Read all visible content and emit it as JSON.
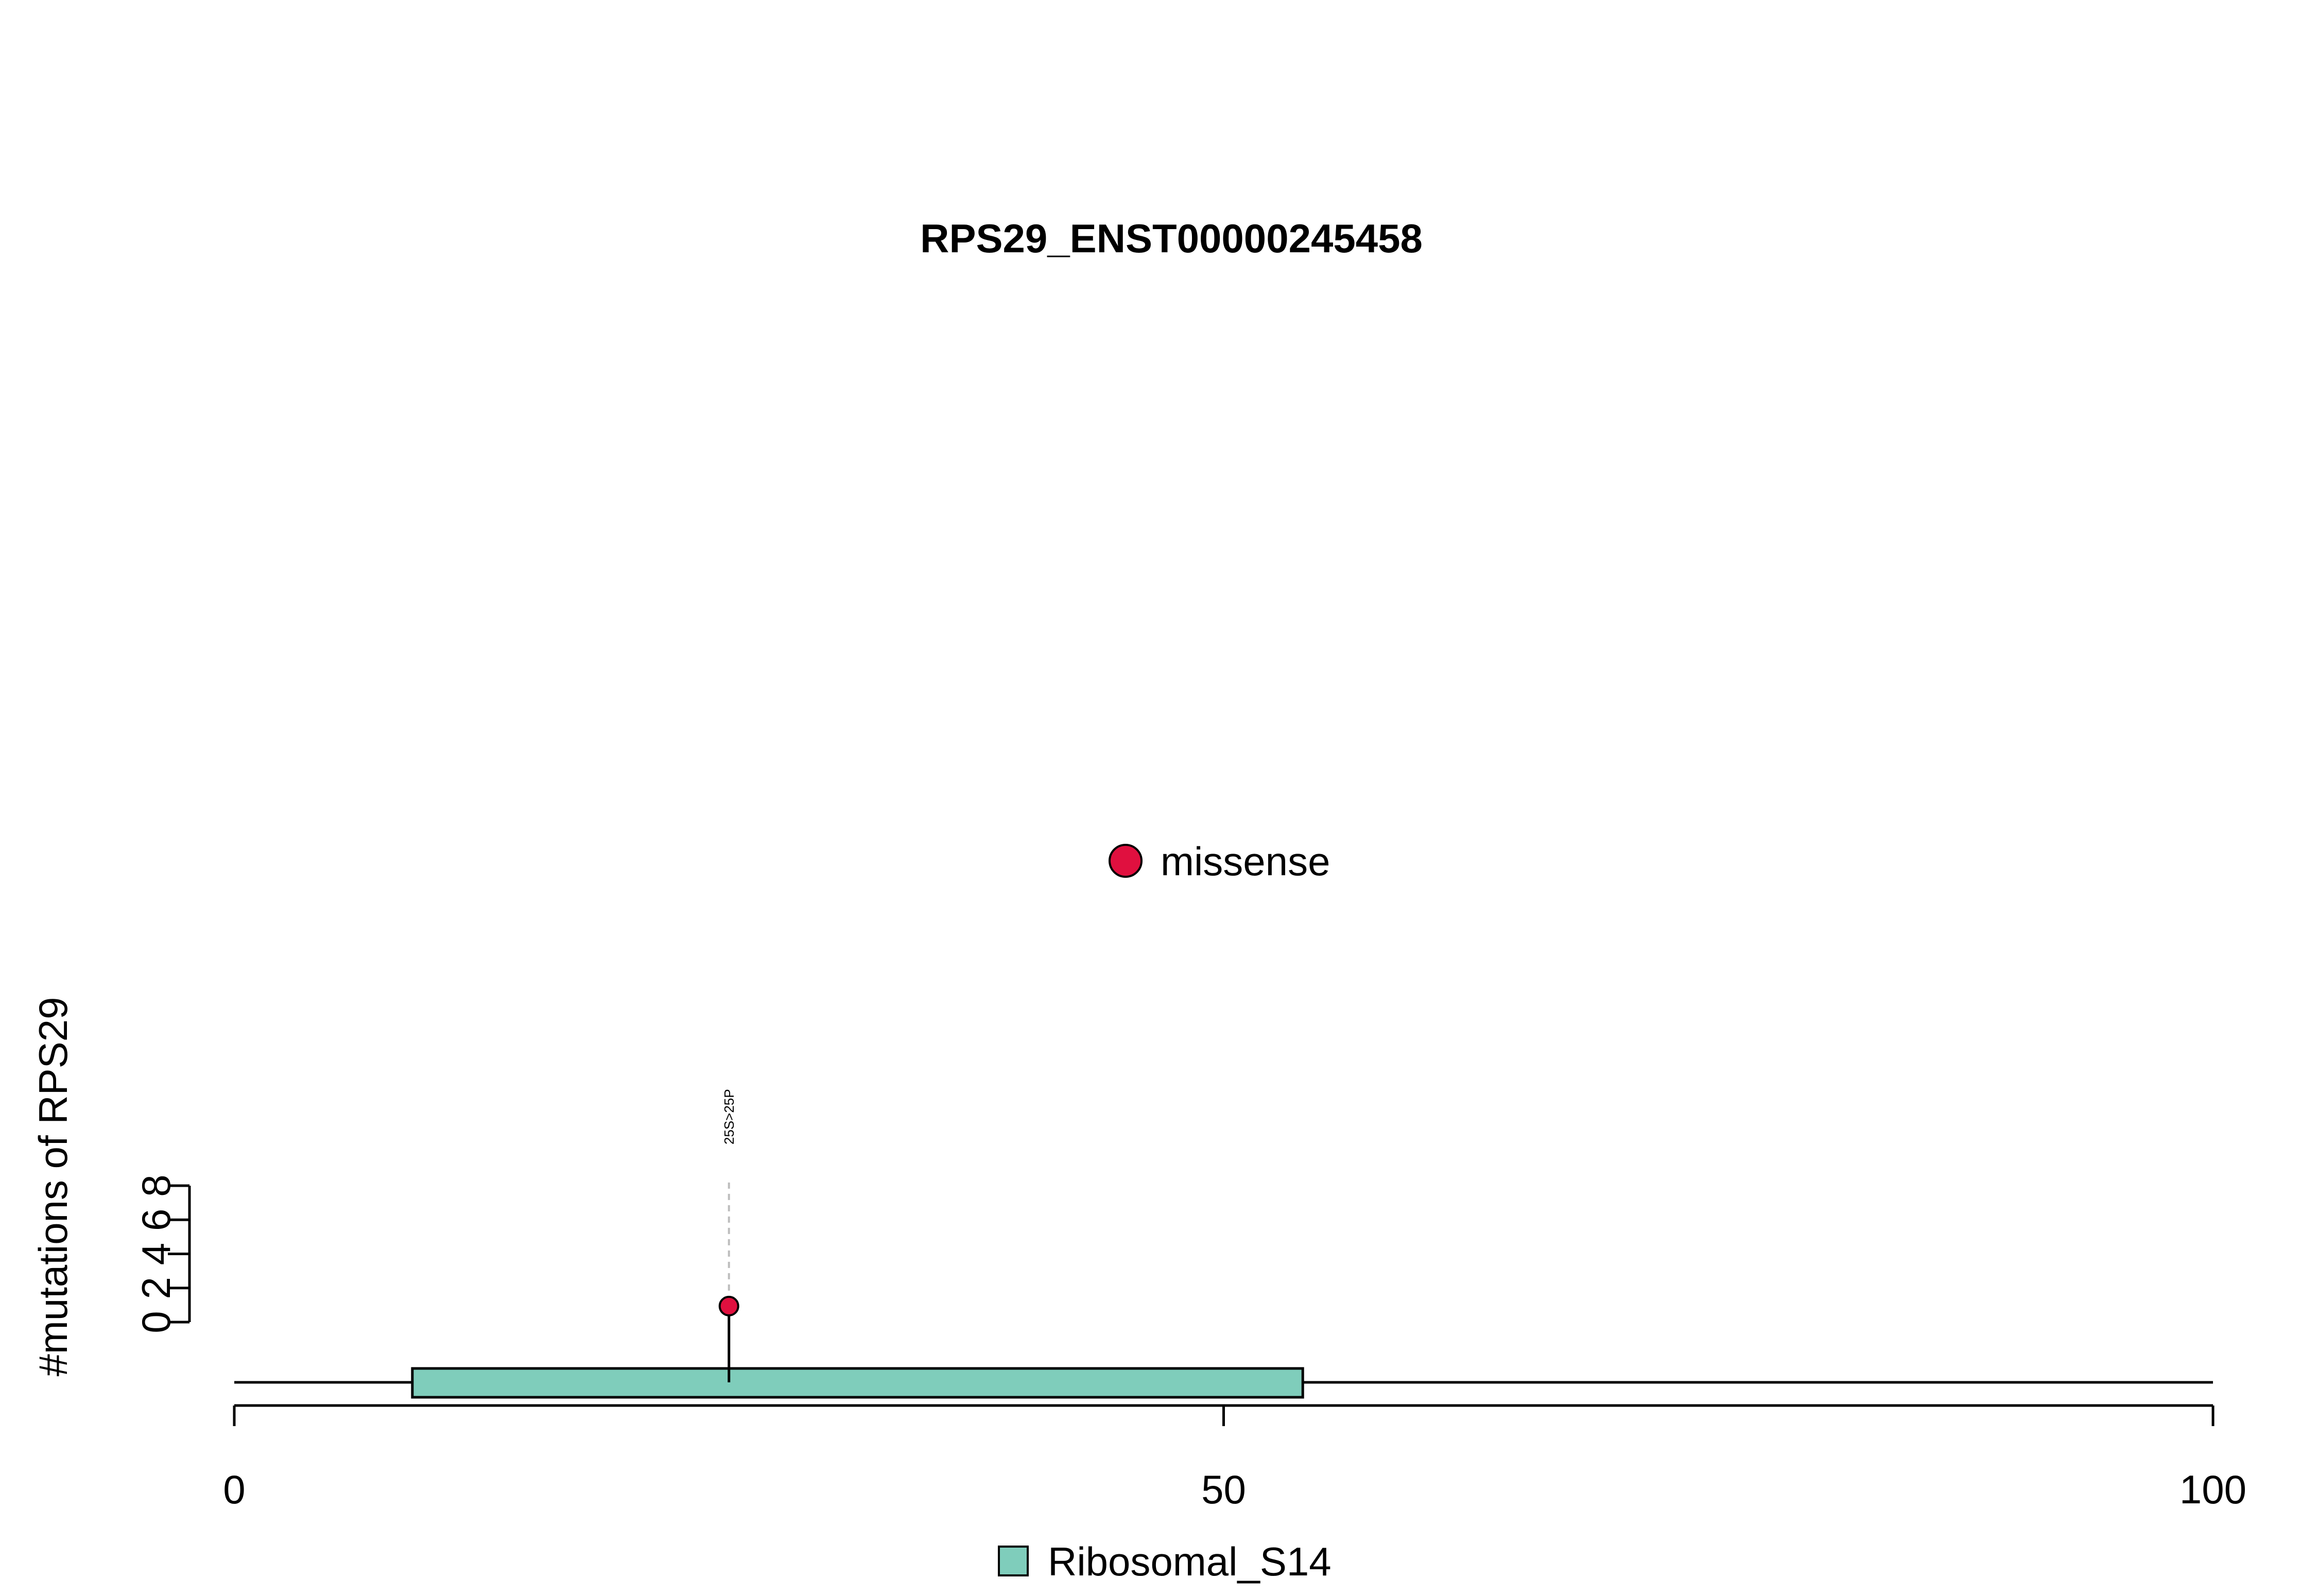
{
  "chart_data": {
    "type": "lollipop",
    "title": "RPS29_ENST00000245458",
    "ylabel": "#mutations of RPS29",
    "xlim": [
      0,
      100
    ],
    "x_ticks": [
      0,
      50,
      100
    ],
    "x_tick_labels": [
      "0",
      "50",
      "100"
    ],
    "ylim": [
      0,
      8
    ],
    "y_ticks": [
      0,
      2,
      4,
      6,
      8
    ],
    "y_tick_labels": [
      "0",
      "2",
      "4",
      "6",
      "8"
    ],
    "protein_length": 100,
    "domains": [
      {
        "name": "Ribosomal_S14",
        "start": 9,
        "end": 54,
        "color": "#7fcdbb"
      }
    ],
    "mutations": [
      {
        "position": 25,
        "count": 1,
        "label": "25S>25P",
        "type": "missense",
        "color": "#e0103f"
      }
    ],
    "mutation_legend": [
      {
        "label": "missense",
        "color": "#e0103f"
      }
    ],
    "domain_legend": [
      {
        "label": "Ribosomal_S14",
        "color": "#7fcdbb"
      }
    ],
    "grid": false
  }
}
